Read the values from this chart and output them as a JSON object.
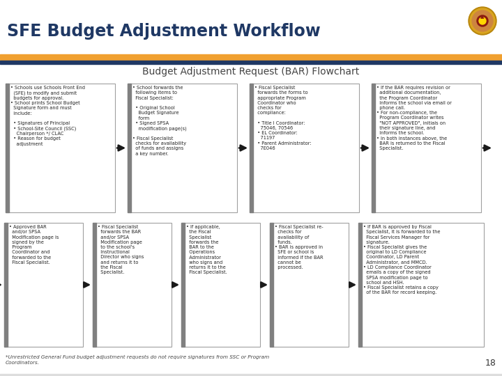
{
  "title": "SFE Budget Adjustment Workflow",
  "subtitle": "Budget Adjustment Request (BAR) Flowchart",
  "header_bar_color": "#F0A030",
  "header_bar2_color": "#1F3864",
  "title_color": "#1F3864",
  "slide_bg": "#FFFFFF",
  "arrow_color": "#1A1A1A",
  "page_number": "18",
  "footnote": "*Unrestricted General Fund budget adjustment requests do not require signatures from SSC or Program\nCoordinators.",
  "row1_texts": [
    "• Schools use Schools Front End\n  (SFE) to modify and submit\n  budgets for approval.\n• School prints School Budget\n  Signature form and must\n  include:\n\n  • Signatures of Principal\n  • School-Site Council (SSC)\n    Chairperson */ CLAC\n  • Reason for budget\n    adjustment",
    "• School forwards the\n  following items to\n  Fiscal Specialist:\n\n  • Original School\n    Budget Signature\n    form\n  • Signed SPSA\n    modification page(s)\n\n• Fiscal Specialist\n  checks for availability\n  of funds and assigns\n  a key number.",
    "• Fiscal Specialist\n  forwards the forms to\n  appropriate Program\n  Coordinator who\n  checks for\n  compliance:\n\n  • Title I Coordinator:\n    75046, 70546\n  • EL Coordinator:\n    71197\n  • Parent Administrator:\n    7E046",
    "• If the BAR requires revision or\n  additional documentation,\n  the Program Coordinator\n  Informs the school via email or\n  phone call.\n• For non-compliance, the\n  Program Coordinator writes\n  \"NOT APPROVED\", initials on\n  their signature line, and\n  Informs the school.\n• In both instances above, the\n  BAR is returned to the Fiscal\n  Specialist."
  ],
  "row2_texts": [
    "• Approved BAR\n  and/or SPSA\n  Modification page is\n  signed by the\n  Program\n  Coordinator and\n  forwarded to the\n  Fiscal Specialist.",
    "• Fiscal Specialist\n  forwards the BAR\n  and/or SPSA\n  Modification page\n  to the school's\n  Instructional\n  Director who signs\n  and returns it to\n  the Fiscal\n  Specialist.",
    "• If applicable,\n  the Fiscal\n  Specialist\n  forwards the\n  BAR to the\n  Operations\n  Administrator\n  who signs and\n  returns it to the\n  Fiscal Specialist.",
    "• Fiscal Specialist re-\n  checks for\n  availability of\n  funds.\n• BAR is approved in\n  SFE or school is\n  informed if the BAR\n  cannot be\n  processed.",
    "• If BAR is approved by Fiscal\n  Specialist, it is forwarded to the\n  Fiscal Services Manager for\n  signature.\n• Fiscal Specialist gives the\n  original to LD Compliance\n  Coordinator, LD Parent\n  Administrator, and MMCD.\n• LD Compliance Coordinator\n  emails a copy of the signed\n  SPSA modification page to\n  school and HSH.\n• Fiscal Specialist retains a copy\n  of the BAR for record keeping."
  ],
  "row1_bold_idx": [
    3
  ],
  "row2_bold_idx": [
    0,
    1
  ],
  "logo_colors": [
    "#C8860A",
    "#D4A020",
    "#8B1A10",
    "#FFD700"
  ],
  "box_face": "#FFFFFF",
  "box_edge": "#A0A0A0",
  "box_left_accent": "#808080",
  "text_color": "#222222"
}
